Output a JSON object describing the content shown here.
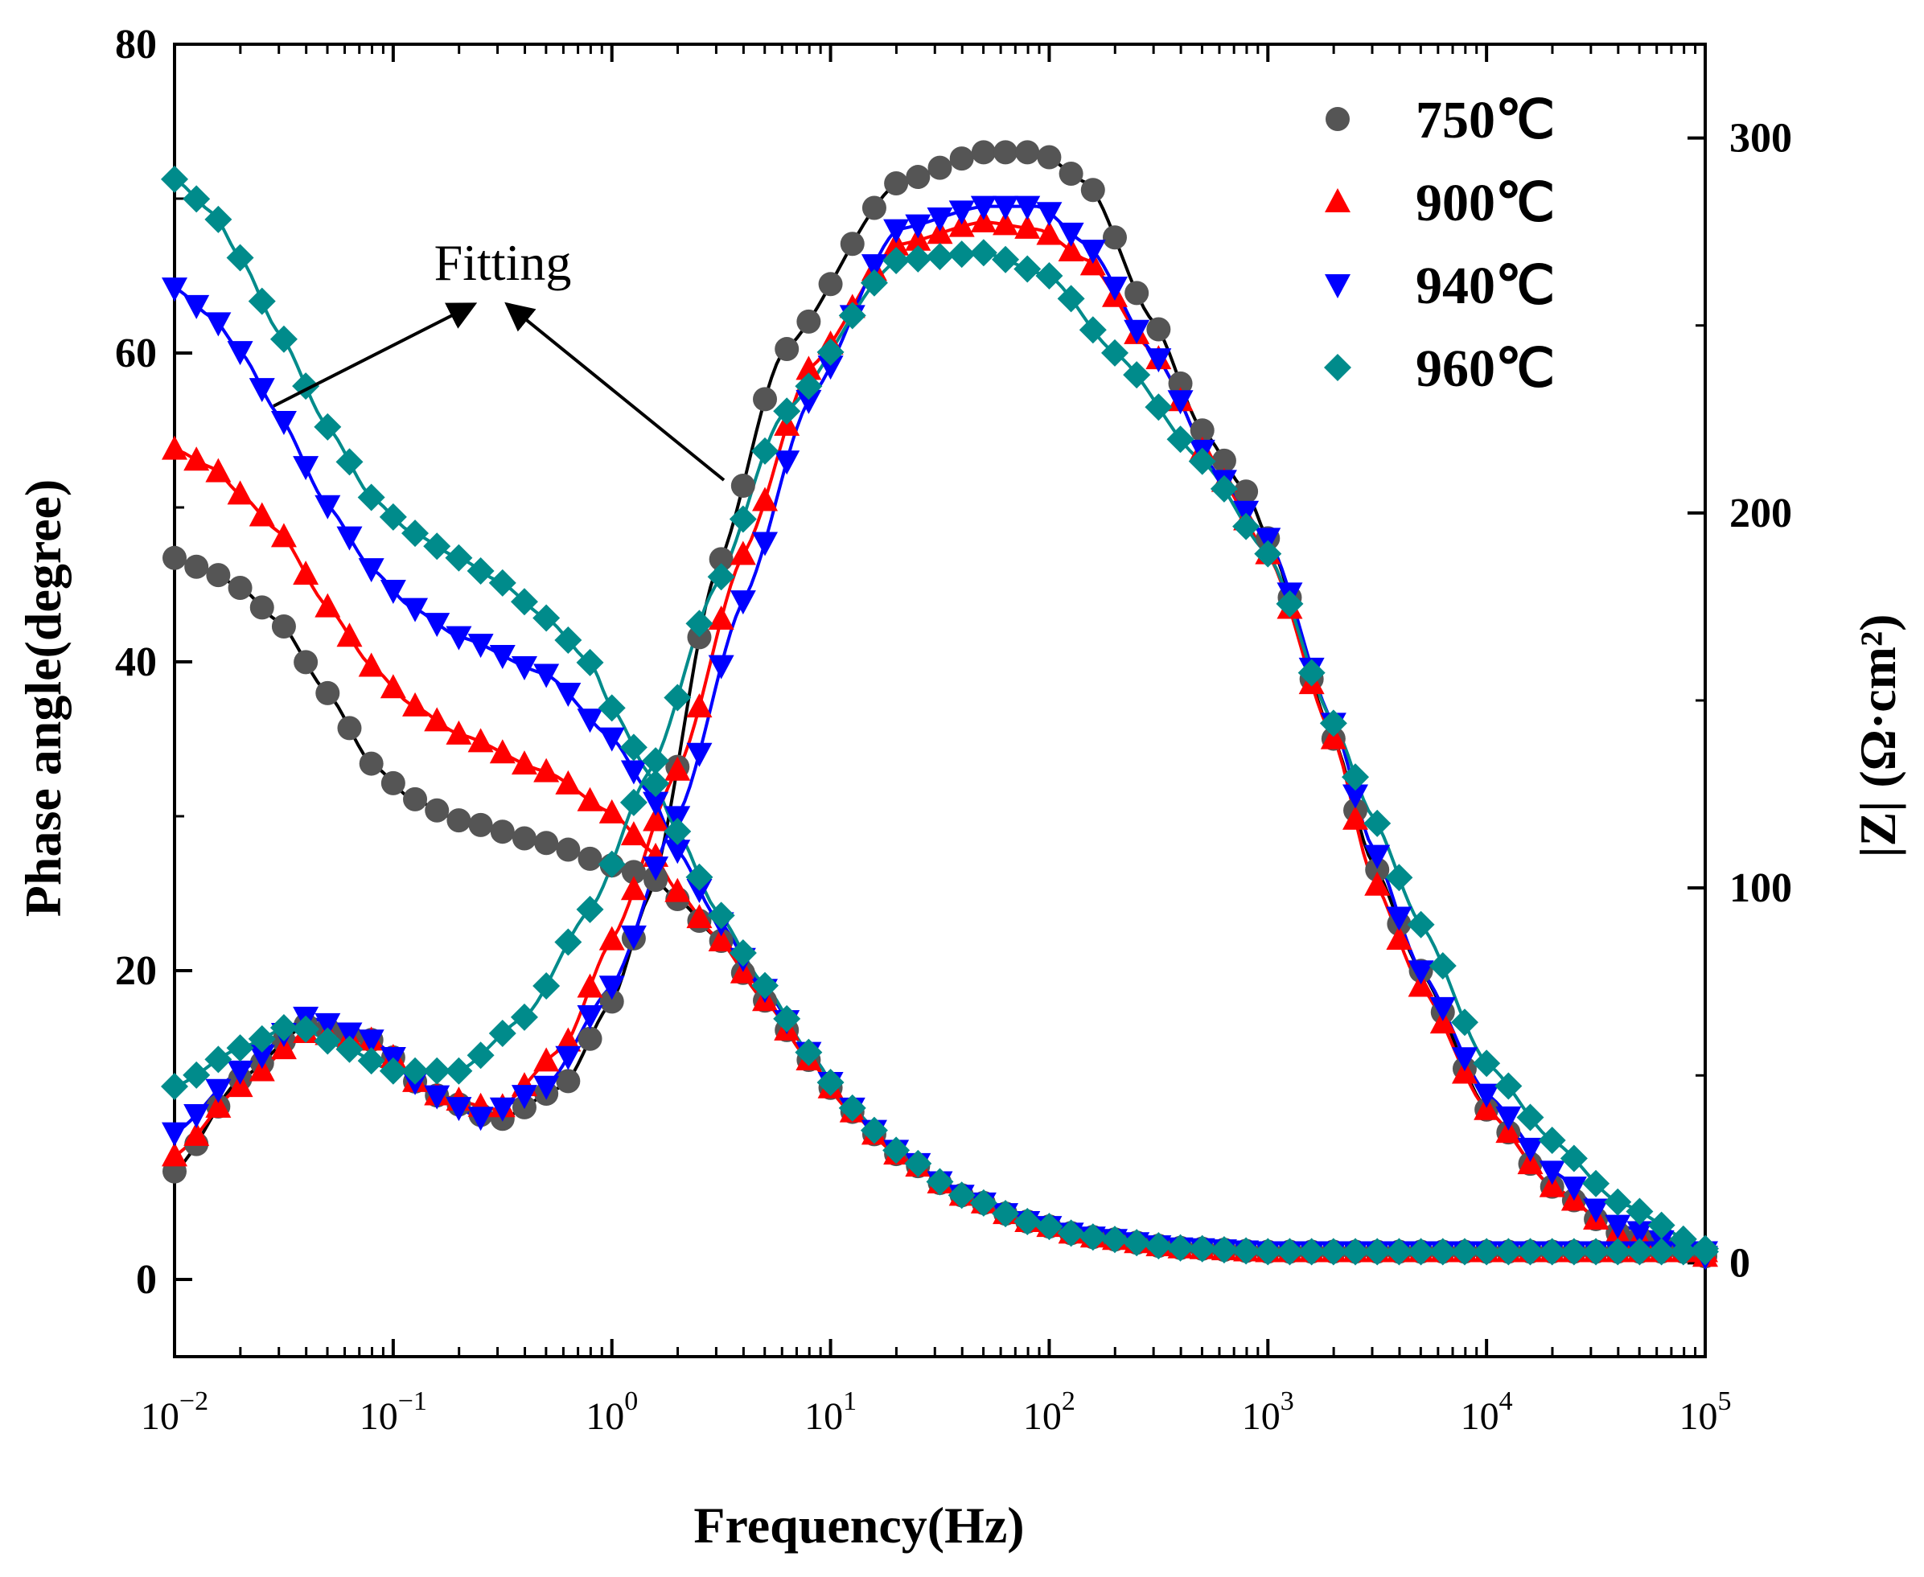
{
  "chart_data": {
    "type": "line",
    "x_scale": "log",
    "xlabel": "Frequency(Hz)",
    "ylabel_left": "Phase angle(degree)",
    "ylabel_right": "|Z| (Ω·cm²)",
    "xlim": [
      0.01,
      100000
    ],
    "ylim_left": [
      -5,
      80
    ],
    "ylim_right": [
      -25,
      325
    ],
    "x_ticks": [
      {
        "value": 0.01,
        "base": "10",
        "exp": "−2"
      },
      {
        "value": 0.1,
        "base": "10",
        "exp": "−1"
      },
      {
        "value": 1,
        "base": "10",
        "exp": "0"
      },
      {
        "value": 10,
        "base": "10",
        "exp": "1"
      },
      {
        "value": 100,
        "base": "10",
        "exp": "2"
      },
      {
        "value": 1000,
        "base": "10",
        "exp": "3"
      },
      {
        "value": 10000,
        "base": "10",
        "exp": "4"
      },
      {
        "value": 100000,
        "base": "10",
        "exp": "5"
      }
    ],
    "y_left_ticks": [
      0,
      20,
      40,
      60,
      80
    ],
    "y_right_ticks": [
      0,
      100,
      200,
      300
    ],
    "legend_position": "top-right",
    "annotation": "Fitting",
    "series": [
      {
        "name": "750℃",
        "marker": "circle",
        "color": "#555555",
        "fit_color": "#000000",
        "phase": [
          [
            0.01,
            7
          ],
          [
            0.02,
            13
          ],
          [
            0.04,
            16.5
          ],
          [
            0.08,
            15.5
          ],
          [
            0.15,
            12
          ],
          [
            0.3,
            10.3
          ],
          [
            0.6,
            12.5
          ],
          [
            1,
            18
          ],
          [
            1.5,
            25
          ],
          [
            3,
            46
          ],
          [
            6,
            60
          ],
          [
            20,
            71
          ],
          [
            50,
            73
          ],
          [
            90,
            73
          ],
          [
            150,
            71
          ],
          [
            300,
            62
          ],
          [
            500,
            55
          ],
          [
            800,
            51
          ],
          [
            1000,
            48
          ],
          [
            2000,
            35
          ],
          [
            3000,
            27
          ],
          [
            5000,
            20
          ],
          [
            10000,
            11
          ],
          [
            20000,
            6
          ],
          [
            40000,
            3
          ],
          [
            100000,
            1.5
          ]
        ],
        "impedance": [
          [
            0.01,
            188
          ],
          [
            0.015,
            184
          ],
          [
            0.02,
            180
          ],
          [
            0.03,
            171
          ],
          [
            0.05,
            152
          ],
          [
            0.08,
            133
          ],
          [
            0.12,
            124
          ],
          [
            0.2,
            118
          ],
          [
            0.5,
            112
          ],
          [
            1,
            106
          ],
          [
            1.5,
            103
          ],
          [
            2,
            97
          ],
          [
            3,
            87
          ],
          [
            5,
            70
          ],
          [
            8,
            54
          ],
          [
            12,
            41
          ],
          [
            20,
            29
          ],
          [
            40,
            18
          ],
          [
            80,
            11
          ],
          [
            150,
            7
          ],
          [
            400,
            4
          ],
          [
            1000,
            3
          ],
          [
            10000,
            3
          ],
          [
            100000,
            3
          ]
        ]
      },
      {
        "name": "900℃",
        "marker": "triangle-up",
        "color": "#ff0000",
        "fit_color": "#ff0000",
        "phase": [
          [
            0.01,
            8
          ],
          [
            0.02,
            12.5
          ],
          [
            0.04,
            16
          ],
          [
            0.08,
            15.5
          ],
          [
            0.15,
            12
          ],
          [
            0.3,
            11
          ],
          [
            0.6,
            15
          ],
          [
            1,
            22
          ],
          [
            2,
            33
          ],
          [
            4,
            47
          ],
          [
            8,
            59
          ],
          [
            20,
            67
          ],
          [
            50,
            68.5
          ],
          [
            90,
            68
          ],
          [
            150,
            66
          ],
          [
            300,
            60
          ],
          [
            600,
            52
          ],
          [
            1000,
            47
          ],
          [
            2000,
            35
          ],
          [
            3000,
            26
          ],
          [
            5000,
            19
          ],
          [
            10000,
            11
          ],
          [
            20000,
            6
          ],
          [
            40000,
            3
          ],
          [
            100000,
            1.5
          ]
        ],
        "impedance": [
          [
            0.01,
            217
          ],
          [
            0.015,
            212
          ],
          [
            0.02,
            205
          ],
          [
            0.03,
            195
          ],
          [
            0.05,
            175
          ],
          [
            0.08,
            159
          ],
          [
            0.12,
            149
          ],
          [
            0.2,
            141
          ],
          [
            0.5,
            131
          ],
          [
            1,
            120
          ],
          [
            1.5,
            110
          ],
          [
            2,
            99
          ],
          [
            3,
            87
          ],
          [
            5,
            70
          ],
          [
            8,
            54
          ],
          [
            12,
            41
          ],
          [
            20,
            29
          ],
          [
            40,
            18
          ],
          [
            80,
            11
          ],
          [
            150,
            7
          ],
          [
            400,
            4
          ],
          [
            1000,
            3
          ],
          [
            10000,
            3
          ],
          [
            100000,
            3
          ]
        ]
      },
      {
        "name": "940℃",
        "marker": "triangle-down",
        "color": "#0000ff",
        "fit_color": "#0000ff",
        "phase": [
          [
            0.01,
            9.5
          ],
          [
            0.02,
            13.5
          ],
          [
            0.04,
            17
          ],
          [
            0.08,
            15.5
          ],
          [
            0.15,
            12
          ],
          [
            0.25,
            10.5
          ],
          [
            0.5,
            12.5
          ],
          [
            1,
            19
          ],
          [
            2,
            30
          ],
          [
            4,
            44
          ],
          [
            8,
            57
          ],
          [
            20,
            68
          ],
          [
            50,
            69.5
          ],
          [
            90,
            69.5
          ],
          [
            150,
            67
          ],
          [
            300,
            60
          ],
          [
            600,
            52
          ],
          [
            1000,
            48
          ],
          [
            2000,
            36
          ],
          [
            3000,
            28
          ],
          [
            5000,
            20
          ],
          [
            10000,
            12
          ],
          [
            20000,
            7
          ],
          [
            40000,
            3.5
          ],
          [
            100000,
            1.5
          ]
        ],
        "impedance": [
          [
            0.01,
            260
          ],
          [
            0.015,
            252
          ],
          [
            0.02,
            243
          ],
          [
            0.03,
            226
          ],
          [
            0.05,
            202
          ],
          [
            0.08,
            185
          ],
          [
            0.12,
            175
          ],
          [
            0.2,
            167
          ],
          [
            0.5,
            157
          ],
          [
            1,
            140
          ],
          [
            1.5,
            125
          ],
          [
            2,
            110
          ],
          [
            3,
            92
          ],
          [
            5,
            73
          ],
          [
            8,
            56
          ],
          [
            12,
            42
          ],
          [
            20,
            30
          ],
          [
            40,
            18
          ],
          [
            80,
            11
          ],
          [
            150,
            7
          ],
          [
            400,
            4
          ],
          [
            1000,
            3
          ],
          [
            10000,
            3
          ],
          [
            100000,
            3
          ]
        ]
      },
      {
        "name": "960℃",
        "marker": "diamond",
        "color": "#008b8b",
        "fit_color": "#008b8b",
        "phase": [
          [
            0.01,
            12.5
          ],
          [
            0.02,
            15
          ],
          [
            0.035,
            16.5
          ],
          [
            0.06,
            15
          ],
          [
            0.1,
            13.5
          ],
          [
            0.2,
            13.5
          ],
          [
            0.4,
            17
          ],
          [
            0.8,
            24
          ],
          [
            1.5,
            33
          ],
          [
            3,
            45
          ],
          [
            6,
            56
          ],
          [
            20,
            66
          ],
          [
            50,
            66.5
          ],
          [
            100,
            65
          ],
          [
            200,
            60
          ],
          [
            500,
            53
          ],
          [
            1000,
            47
          ],
          [
            2000,
            36
          ],
          [
            3000,
            30
          ],
          [
            5000,
            23
          ],
          [
            10000,
            14
          ],
          [
            20000,
            9
          ],
          [
            40000,
            5
          ],
          [
            100000,
            2
          ]
        ],
        "impedance": [
          [
            0.01,
            289
          ],
          [
            0.015,
            280
          ],
          [
            0.02,
            268
          ],
          [
            0.03,
            248
          ],
          [
            0.05,
            223
          ],
          [
            0.08,
            204
          ],
          [
            0.12,
            195
          ],
          [
            0.2,
            188
          ],
          [
            0.3,
            182
          ],
          [
            0.5,
            172
          ],
          [
            0.8,
            160
          ],
          [
            1,
            148
          ],
          [
            1.5,
            130
          ],
          [
            2,
            115
          ],
          [
            3,
            94
          ],
          [
            5,
            74
          ],
          [
            8,
            56
          ],
          [
            12,
            42
          ],
          [
            20,
            30
          ],
          [
            40,
            18
          ],
          [
            80,
            11
          ],
          [
            150,
            7
          ],
          [
            400,
            4
          ],
          [
            1000,
            3
          ],
          [
            10000,
            3
          ],
          [
            100000,
            3
          ]
        ]
      }
    ]
  }
}
